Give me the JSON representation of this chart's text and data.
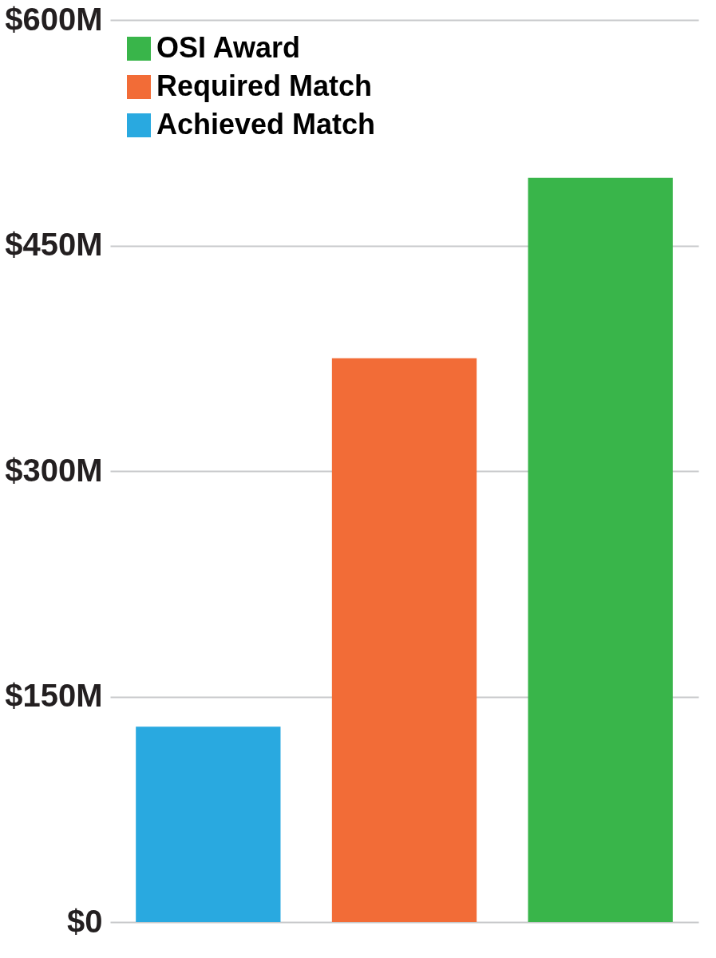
{
  "chart_data": {
    "type": "bar",
    "categories": [
      null,
      null,
      null
    ],
    "series": [
      {
        "name": "OSI Award",
        "color": "#39b54a",
        "values": [
          null,
          null,
          495
        ]
      },
      {
        "name": "Required Match",
        "color": "#f26c37",
        "values": [
          null,
          375,
          null
        ]
      },
      {
        "name": "Achieved Match",
        "color": "#29a9e0",
        "values": [
          130,
          null,
          null
        ]
      }
    ],
    "ylim": [
      0,
      600
    ],
    "yticks": [
      {
        "value": 0,
        "label": "$0"
      },
      {
        "value": 150,
        "label": "$150M"
      },
      {
        "value": 300,
        "label": "$300M"
      },
      {
        "value": 450,
        "label": "$450M"
      },
      {
        "value": 600,
        "label": "$600M"
      }
    ],
    "grid": "y",
    "legend": "top left"
  }
}
